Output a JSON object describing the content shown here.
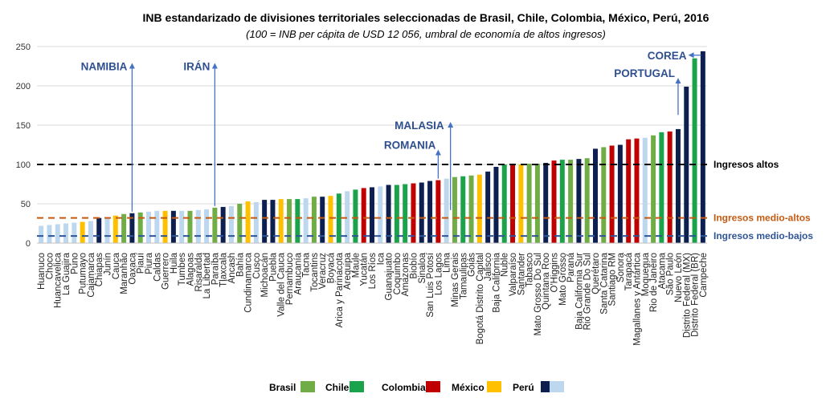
{
  "chart_data": {
    "type": "bar",
    "title": "INB estandarizado de divisiones territoriales seleccionadas de Brasil, Chile, Colombia, México, Perú, 2016",
    "subtitle": "(100 = INB per cápita de USD 12 056, umbral de economía de altos ingresos)",
    "ylim": [
      0,
      250
    ],
    "yticks": [
      0,
      50,
      100,
      150,
      200,
      250
    ],
    "colors": {
      "Brasil": "#70ad47",
      "Chile": "#1aa34a",
      "Colombia": "#c00000",
      "México": "#ffc000",
      "Perú": "#0d1f4f",
      "Otros": "#bdd7ee"
    },
    "legend": [
      {
        "label": "Brasil",
        "key": "Brasil"
      },
      {
        "label": "Chile",
        "key": "Chile"
      },
      {
        "label": "Colombia",
        "key": "Colombia"
      },
      {
        "label": "México",
        "key": "México"
      },
      {
        "label": "Perú",
        "key": "Perú"
      },
      {
        "label": "",
        "key": "Otros"
      }
    ],
    "thresholds": [
      {
        "label": "Ingresos altos",
        "value": 100,
        "color": "#000000"
      },
      {
        "label": "Ingresos medio-altos",
        "value": 32,
        "color": "#c55a11"
      },
      {
        "label": "Ingresos medio-bajos",
        "value": 9,
        "color": "#2f5597"
      }
    ],
    "categories": [
      "Huanuco",
      "Choco",
      "Huancavelica",
      "La Guajira",
      "Puno",
      "Putumayo",
      "Cajamarca",
      "Chiapas",
      "Junín",
      "Cauca",
      "Maranhão",
      "Oaxaca",
      "Piauí",
      "Piura",
      "Caldas",
      "Guerrero",
      "Huila",
      "Tumbes",
      "Alagoas",
      "Risaralda",
      "La Libertad",
      "Paraíba",
      "Tlaxcala",
      "Áncash",
      "Bahía",
      "Cundinamarca",
      "Cusco",
      "Michoacán",
      "Puebla",
      "Valle del Cauca",
      "Pernambuco",
      "Araucanía",
      "Tacna",
      "Tocantins",
      "Veracruz",
      "Boyacá",
      "Arica y Parinacota",
      "Arequipa",
      "Maule",
      "Yucatán",
      "Los Ríos",
      "Ica",
      "Guanajuato",
      "Coquimbo",
      "Amazonas",
      "Biobío",
      "Sinaloa",
      "San Luis Potosí",
      "Los Lagos",
      "Lima",
      "Minas Gerais",
      "Tamaulipas",
      "Goiás",
      "Bogotá Distrito Capital",
      "Jalisco",
      "Baja California",
      "Ñuble",
      "Valparaíso",
      "Santander",
      "Tabasco",
      "Mato Grosso Do Sul",
      "Quintana Roo",
      "O'Higgins",
      "Mato Grosso",
      "Paraná",
      "Baja California Sur",
      "Rio Grande Do Sul",
      "Querétaro",
      "Santa Catarina",
      "Santiago RM",
      "Sonora",
      "Tarapacá",
      "Magallanes y Antártica",
      "Moquegua",
      "Rio de Janeiro",
      "Atacama",
      "São Paulo",
      "Nuevo León",
      "Distrito Federal (MX)",
      "Distrito Federal (BR)",
      "Campeche"
    ],
    "series_keys": [
      "Otros",
      "Otros",
      "Otros",
      "Otros",
      "Otros",
      "México",
      "Otros",
      "Perú",
      "Otros",
      "México",
      "Brasil",
      "Perú",
      "Brasil",
      "Otros",
      "Otros",
      "México",
      "Perú",
      "Otros",
      "Brasil",
      "Otros",
      "Otros",
      "Brasil",
      "Perú",
      "Otros",
      "Brasil",
      "México",
      "Otros",
      "Perú",
      "Perú",
      "México",
      "Brasil",
      "Chile",
      "Otros",
      "Brasil",
      "Perú",
      "México",
      "Chile",
      "Otros",
      "Chile",
      "Colombia",
      "Perú",
      "Otros",
      "Perú",
      "Chile",
      "Chile",
      "Colombia",
      "Perú",
      "Perú",
      "Colombia",
      "Otros",
      "Brasil",
      "Chile",
      "Brasil",
      "México",
      "Perú",
      "Perú",
      "Chile",
      "Colombia",
      "México",
      "Brasil",
      "Brasil",
      "Perú",
      "Colombia",
      "Chile",
      "Brasil",
      "Perú",
      "Brasil",
      "Perú",
      "Brasil",
      "Colombia",
      "Perú",
      "Colombia",
      "Colombia",
      "Otros",
      "Brasil",
      "Chile",
      "Colombia",
      "Perú",
      "Perú",
      "Chile",
      "Perú"
    ],
    "values": [
      22,
      23,
      24,
      25,
      26,
      27,
      28,
      32,
      33,
      35,
      37,
      38,
      39,
      40,
      41,
      41,
      41,
      41,
      41,
      42,
      43,
      45,
      46,
      47,
      50,
      53,
      52,
      55,
      55,
      56,
      56,
      56,
      57,
      59,
      59,
      60,
      63,
      66,
      68,
      70,
      71,
      72,
      74,
      74,
      75,
      76,
      77,
      79,
      80,
      82,
      84,
      85,
      86,
      87,
      91,
      97,
      100,
      101,
      100,
      101,
      101,
      102,
      105,
      106,
      106,
      107,
      108,
      120,
      122,
      124,
      125,
      132,
      133,
      134,
      137,
      141,
      142,
      145,
      199,
      235,
      244
    ],
    "annotations": [
      {
        "label": "NAMIBIA",
        "category_index": 11,
        "text_y": 225
      },
      {
        "label": "IRÁN",
        "category_index": 21,
        "text_y": 225
      },
      {
        "label": "MALASIA",
        "category_index": 49,
        "text_y": 150
      },
      {
        "label": "ROMANIA",
        "category_index": 48,
        "text_y": 125
      },
      {
        "label": "PORTUGAL",
        "category_index": 77,
        "text_y": 208
      },
      {
        "label": "COREA",
        "category_index": 79,
        "text_y": 239
      }
    ]
  }
}
